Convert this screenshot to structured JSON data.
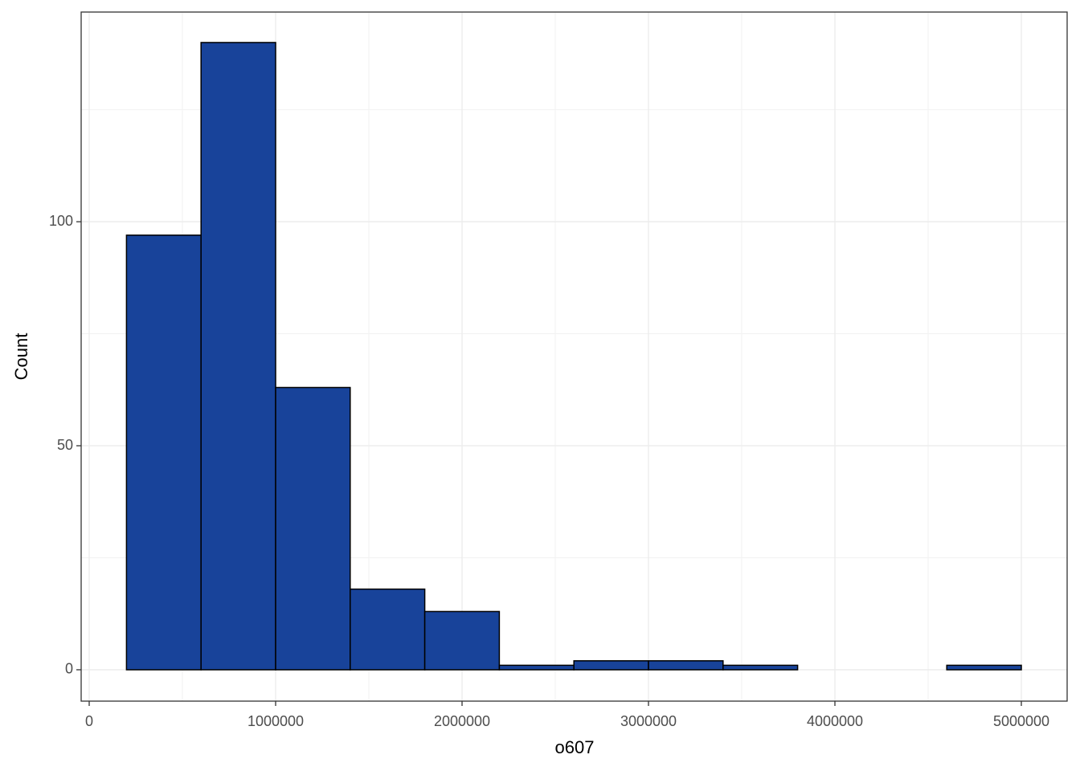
{
  "chart_data": {
    "type": "histogram",
    "x_label": "o607",
    "y_label": "Count",
    "bins": [
      200000,
      600000,
      1000000,
      1400000,
      1800000,
      2200000,
      2600000,
      3000000,
      3400000,
      3800000,
      4200000,
      4600000,
      5000000
    ],
    "counts": [
      97,
      140,
      63,
      18,
      13,
      1,
      2,
      2,
      1,
      0,
      0,
      1
    ],
    "color": "#18439a",
    "edge_color": "#000000",
    "xlim": [
      -43103,
      5245690
    ],
    "xticks": [
      0,
      1000000,
      2000000,
      3000000,
      4000000,
      5000000
    ],
    "x_minor_grid": [
      500000,
      1500000,
      2500000,
      3500000,
      4500000
    ],
    "ylim": [
      -7,
      146.8
    ],
    "yticks": [
      0,
      50,
      100
    ],
    "y_minor_grid": [
      25,
      75,
      125
    ],
    "grid": true
  }
}
